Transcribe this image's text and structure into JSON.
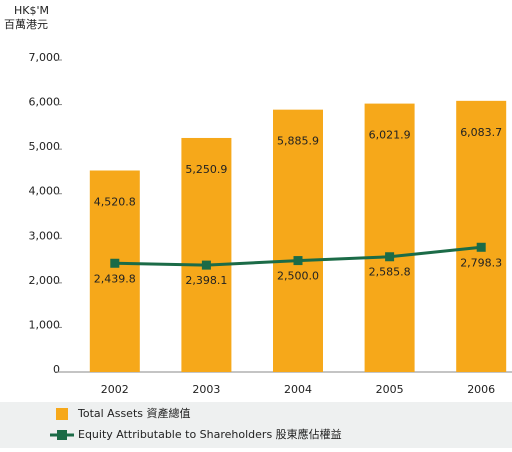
{
  "chart_data": {
    "type": "combo",
    "y_axis_label": "HK$'M",
    "y_axis_label_2": "百萬港元",
    "categories": [
      "2002",
      "2003",
      "2004",
      "2005",
      "2006"
    ],
    "series": [
      {
        "name": "Total Assets 資產總值",
        "type": "bar",
        "color": "#f6a81a",
        "values": [
          4520.8,
          5250.9,
          5885.9,
          6021.9,
          6083.7
        ],
        "value_labels": [
          "4,520.8",
          "5,250.9",
          "5,885.9",
          "6,021.9",
          "6,083.7"
        ]
      },
      {
        "name": "Equity Attributable to Shareholders 股東應佔權益",
        "type": "line",
        "color": "#1b6b47",
        "values": [
          2439.8,
          2398.1,
          2500.0,
          2585.8,
          2798.3
        ],
        "value_labels": [
          "2,439.8",
          "2,398.1",
          "2,500.0",
          "2,585.8",
          "2,798.3"
        ]
      }
    ],
    "ylim": [
      0,
      7000
    ],
    "yticks": [
      0,
      {
        "value": 1000,
        "label": "1,000"
      },
      {
        "value": 2000,
        "label": "2,000"
      },
      {
        "value": 3000,
        "label": "3,000"
      },
      {
        "value": 4000,
        "label": "4,000"
      },
      {
        "value": 5000,
        "label": "5,000"
      },
      {
        "value": 6000,
        "label": "6,000"
      },
      {
        "value": 7000,
        "label": "7,000"
      }
    ],
    "grid": false
  }
}
